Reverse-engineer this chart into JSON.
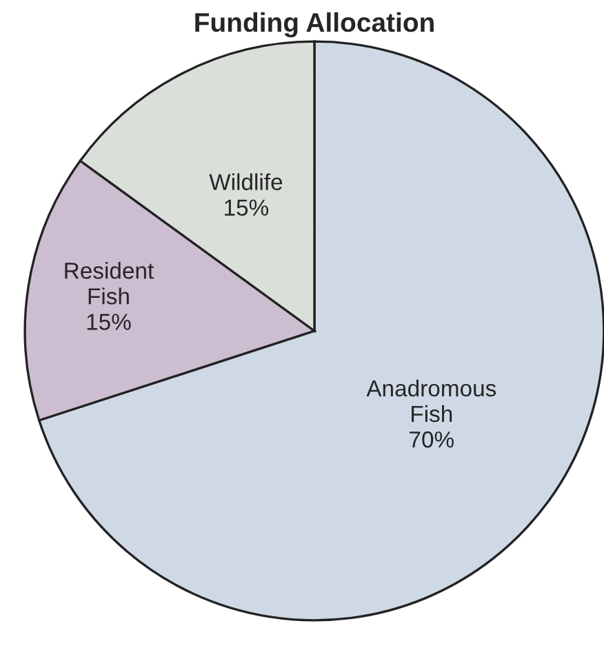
{
  "chart_data": {
    "type": "pie",
    "title": "Funding Allocation",
    "categories": [
      "Anadromous Fish",
      "Resident Fish",
      "Wildlife"
    ],
    "values": [
      70,
      15,
      15
    ],
    "value_labels": [
      "70%",
      "15%",
      "15%"
    ],
    "colors": [
      "#cfd9e6",
      "#cdbdd0",
      "#dadfda"
    ]
  }
}
